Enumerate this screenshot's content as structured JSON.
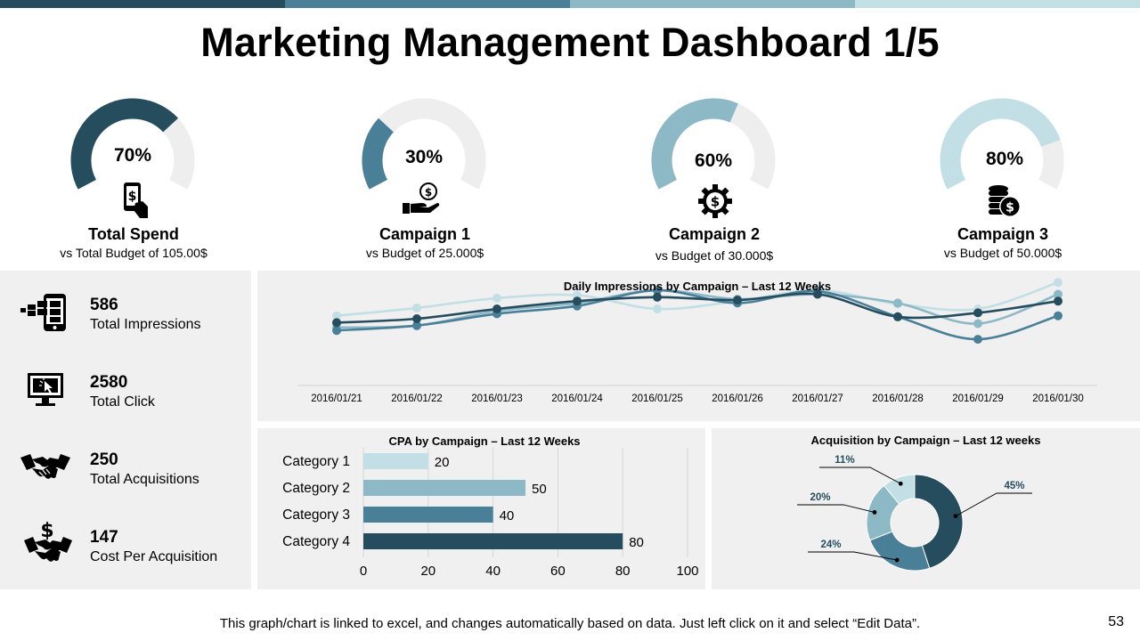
{
  "header": {
    "title": "Marketing Management Dashboard 1/5",
    "bar_colors": [
      "#264d5e",
      "#4a7f98",
      "#8db8c6",
      "#c2dfe6"
    ]
  },
  "gauges": [
    {
      "percent": 70,
      "label": "70%",
      "name": "Total Spend",
      "sub": "vs Total Budget of 105.00$",
      "color": "#264d5e",
      "icon": "phone-dollar-icon"
    },
    {
      "percent": 30,
      "label": "30%",
      "name": "Campaign 1",
      "sub": "vs Budget of 25.000$",
      "color": "#4a7f98",
      "icon": "hand-coin-icon"
    },
    {
      "percent": 60,
      "label": "60%",
      "name": "Campaign 2",
      "sub": "vs Budget of 30.000$",
      "color": "#8db8c6",
      "icon": "gear-dollar-icon"
    },
    {
      "percent": 80,
      "label": "80%",
      "name": "Campaign 3",
      "sub": "vs Budget of 50.000$",
      "color": "#c2dfe6",
      "icon": "coin-stack-icon"
    }
  ],
  "kpis": [
    {
      "value": "586",
      "label": "Total Impressions",
      "icon": "mobile-impressions-icon"
    },
    {
      "value": "2580",
      "label": "Total Click",
      "icon": "monitor-click-icon"
    },
    {
      "value": "250",
      "label": "Total Acquisitions",
      "icon": "handshake-icon"
    },
    {
      "value": "147",
      "label": "Cost Per Acquisition",
      "icon": "dollar-handshake-icon"
    }
  ],
  "chart_data": [
    {
      "type": "line",
      "title": "Daily Impressions  by Campaign – Last 12 Weeks",
      "x": [
        "2016/01/21",
        "2016/01/22",
        "2016/01/23",
        "2016/01/24",
        "2016/01/25",
        "2016/01/26",
        "2016/01/27",
        "2016/01/28",
        "2016/01/29",
        "2016/01/30"
      ],
      "series": [
        {
          "values": [
            63,
            71,
            81,
            84,
            70,
            78,
            89,
            75,
            70,
            97
          ],
          "color": "#c2dfe6"
        },
        {
          "values": [
            51,
            53,
            68,
            76,
            89,
            80,
            85,
            76,
            55,
            85
          ],
          "color": "#8db8c6"
        },
        {
          "values": [
            48,
            53,
            65,
            73,
            89,
            76,
            88,
            62,
            39,
            63
          ],
          "color": "#4a7f98"
        },
        {
          "values": [
            56,
            60,
            70,
            78,
            82,
            79,
            85,
            62,
            66,
            78
          ],
          "color": "#264d5e"
        }
      ],
      "grid": false,
      "legend": "none"
    },
    {
      "type": "bar",
      "orientation": "horizontal",
      "title": "CPA by Campaign – Last 12 Weeks",
      "categories": [
        "Category 1",
        "Category 2",
        "Category 3",
        "Category 4"
      ],
      "values": [
        20,
        50,
        40,
        80
      ],
      "colors": [
        "#c2dfe6",
        "#8db8c6",
        "#4a7f98",
        "#264d5e"
      ],
      "xlim": [
        0,
        100
      ],
      "xticks": [
        0,
        20,
        40,
        60,
        80,
        100
      ],
      "grid": true
    },
    {
      "type": "pie",
      "donut": true,
      "title": "Acquisition  by Campaign – Last 12 weeks",
      "values": [
        45,
        24,
        20,
        11
      ],
      "labels": [
        "45%",
        "24%",
        "20%",
        "11%"
      ],
      "colors": [
        "#264d5e",
        "#4a7f98",
        "#8db8c6",
        "#c2dfe6"
      ]
    }
  ],
  "footer": {
    "note": "This graph/chart is linked to excel, and changes automatically  based on data. Just left click on it and select “Edit Data”.",
    "page": "53"
  }
}
